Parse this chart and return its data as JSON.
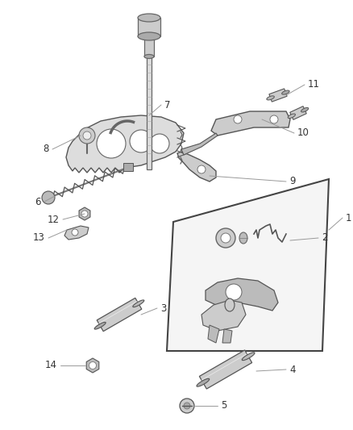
{
  "background_color": "#ffffff",
  "fig_width": 4.38,
  "fig_height": 5.33,
  "dpi": 100,
  "line_color": "#888888",
  "text_color": "#333333",
  "part_edge": "#555555",
  "part_fill": "#cccccc",
  "part_fill_dark": "#aaaaaa",
  "font_size": 8.5
}
